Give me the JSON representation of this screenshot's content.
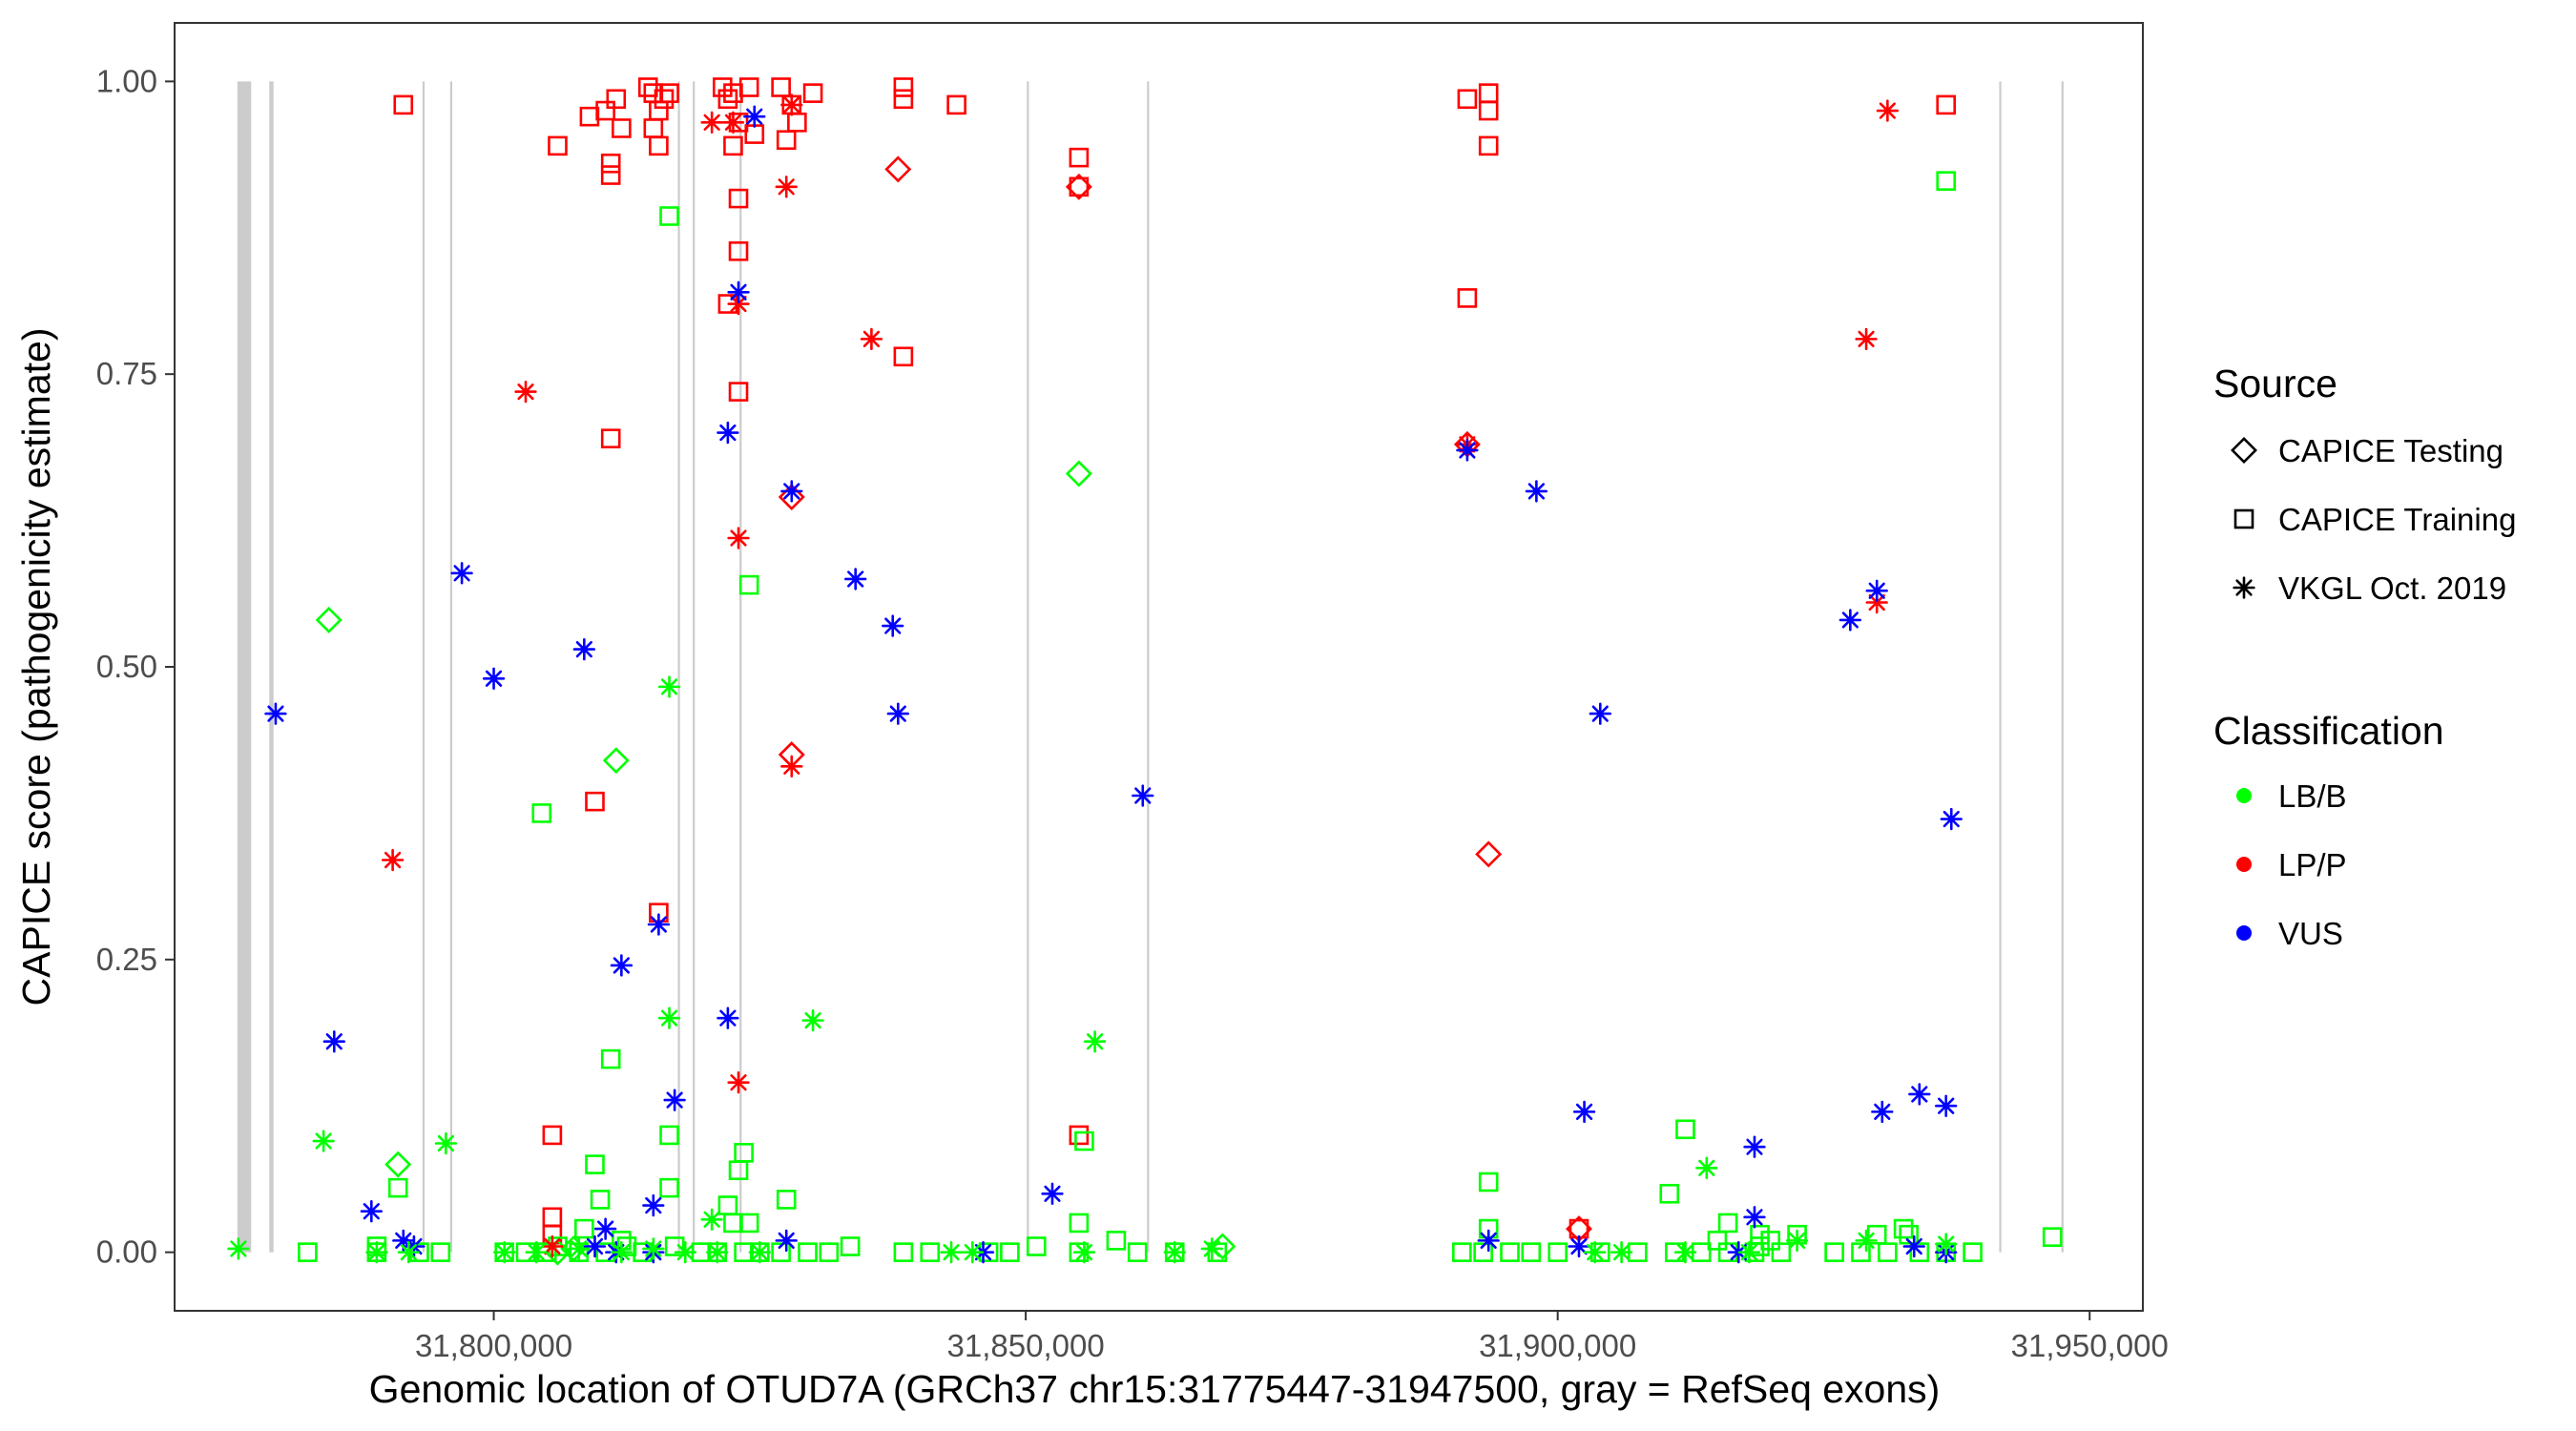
{
  "chart_data": {
    "type": "scatter",
    "xlabel": "Genomic location of OTUD7A (GRCh37 chr15:31775447-31947500, gray = RefSeq exons)",
    "ylabel": "CAPICE score (pathogenicity estimate)",
    "xlim": [
      31770000,
      31955000
    ],
    "ylim": [
      -0.05,
      1.05
    ],
    "x_ticks": [
      31800000,
      31850000,
      31900000,
      31950000
    ],
    "x_tick_labels": [
      "31,800,000",
      "31,850,000",
      "31,900,000",
      "31,950,000"
    ],
    "y_ticks": [
      0,
      0.25,
      0.5,
      0.75,
      1.0
    ],
    "y_tick_labels": [
      "0.00",
      "0.25",
      "0.50",
      "0.75",
      "1.00"
    ],
    "exons": [
      {
        "start": 31775900,
        "end": 31777200
      },
      {
        "start": 31778900,
        "end": 31779300
      },
      {
        "start": 31793300,
        "end": 31793450
      },
      {
        "start": 31795900,
        "end": 31796050
      },
      {
        "start": 31817300,
        "end": 31817450
      },
      {
        "start": 31818700,
        "end": 31818850
      },
      {
        "start": 31823100,
        "end": 31823250
      },
      {
        "start": 31850100,
        "end": 31850250
      },
      {
        "start": 31861400,
        "end": 31861550
      },
      {
        "start": 31941500,
        "end": 31941650
      },
      {
        "start": 31947350,
        "end": 31947500
      }
    ],
    "legend": {
      "source_title": "Source",
      "source_items": [
        {
          "label": "CAPICE Testing",
          "shape": "diamond"
        },
        {
          "label": "CAPICE Training",
          "shape": "square"
        },
        {
          "label": "VKGL Oct. 2019",
          "shape": "asterisk"
        }
      ],
      "class_title": "Classification",
      "class_items": [
        {
          "label": "LB/B",
          "color": "#00ff00"
        },
        {
          "label": "LP/P",
          "color": "#ff0000"
        },
        {
          "label": "VUS",
          "color": "#0000ff"
        }
      ]
    },
    "colors": {
      "LB/B": "#00ff00",
      "LP/P": "#ff0000",
      "VUS": "#0000ff"
    },
    "series": [
      {
        "name": "CAPICE Training / LP/P",
        "shape": "square",
        "classification": "LP/P",
        "points": [
          [
            31791500,
            0.98
          ],
          [
            31806000,
            0.945
          ],
          [
            31809000,
            0.97
          ],
          [
            31810500,
            0.975
          ],
          [
            31811000,
            0.93
          ],
          [
            31811000,
            0.92
          ],
          [
            31811500,
            0.985
          ],
          [
            31812000,
            0.96
          ],
          [
            31814500,
            0.995
          ],
          [
            31815000,
            0.99
          ],
          [
            31815500,
            0.975
          ],
          [
            31815000,
            0.96
          ],
          [
            31815500,
            0.945
          ],
          [
            31816000,
            0.985
          ],
          [
            31816500,
            0.99
          ],
          [
            31821500,
            0.995
          ],
          [
            31822000,
            0.985
          ],
          [
            31822500,
            0.99
          ],
          [
            31823000,
            0.965
          ],
          [
            31822500,
            0.945
          ],
          [
            31824000,
            0.995
          ],
          [
            31824500,
            0.955
          ],
          [
            31823000,
            0.9
          ],
          [
            31823000,
            0.855
          ],
          [
            31823000,
            0.735
          ],
          [
            31822000,
            0.81
          ],
          [
            31827000,
            0.995
          ],
          [
            31828000,
            0.98
          ],
          [
            31828500,
            0.965
          ],
          [
            31827500,
            0.95
          ],
          [
            31830000,
            0.99
          ],
          [
            31838500,
            0.995
          ],
          [
            31838500,
            0.985
          ],
          [
            31843500,
            0.98
          ],
          [
            31838500,
            0.765
          ],
          [
            31855000,
            0.935
          ],
          [
            31855000,
            0.91
          ],
          [
            31891500,
            0.985
          ],
          [
            31893500,
            0.99
          ],
          [
            31893500,
            0.975
          ],
          [
            31893500,
            0.945
          ],
          [
            31891500,
            0.815
          ],
          [
            31936500,
            0.98
          ],
          [
            31811000,
            0.695
          ],
          [
            31815500,
            0.29
          ],
          [
            31809500,
            0.385
          ],
          [
            31805500,
            0.1
          ],
          [
            31805500,
            0.03
          ],
          [
            31805500,
            0.015
          ],
          [
            31855000,
            0.1
          ],
          [
            31902000,
            0.02
          ]
        ]
      },
      {
        "name": "CAPICE Training / LB/B",
        "shape": "square",
        "classification": "LB/B",
        "points": [
          [
            31816500,
            0.885
          ],
          [
            31936500,
            0.915
          ],
          [
            31824000,
            0.57
          ],
          [
            31804500,
            0.375
          ],
          [
            31811000,
            0.165
          ],
          [
            31823500,
            0.085
          ],
          [
            31816500,
            0.1
          ],
          [
            31809500,
            0.075
          ],
          [
            31791000,
            0.055
          ],
          [
            31816500,
            0.055
          ],
          [
            31823000,
            0.07
          ],
          [
            31827500,
            0.045
          ],
          [
            31810000,
            0.045
          ],
          [
            31822000,
            0.04
          ],
          [
            31822500,
            0.025
          ],
          [
            31824000,
            0.025
          ],
          [
            31855000,
            0.025
          ],
          [
            31855500,
            0.095
          ],
          [
            31893500,
            0.06
          ],
          [
            31893500,
            0.02
          ],
          [
            31912000,
            0.105
          ],
          [
            31910500,
            0.05
          ],
          [
            31916000,
            0.025
          ],
          [
            31919000,
            0.015
          ],
          [
            31922500,
            0.015
          ],
          [
            31930000,
            0.015
          ],
          [
            31933000,
            0.015
          ],
          [
            31920000,
            0.01
          ],
          [
            31782500,
            0.0
          ],
          [
            31789000,
            0.0
          ],
          [
            31789000,
            0.005
          ],
          [
            31793000,
            0.0
          ],
          [
            31795000,
            0.0
          ],
          [
            31801000,
            0.0
          ],
          [
            31803000,
            0.0
          ],
          [
            31805000,
            0.0
          ],
          [
            31806000,
            0.005
          ],
          [
            31808000,
            0.0
          ],
          [
            31810500,
            0.0
          ],
          [
            31812500,
            0.005
          ],
          [
            31814000,
            0.0
          ],
          [
            31817000,
            0.005
          ],
          [
            31819500,
            0.0
          ],
          [
            31821000,
            0.0
          ],
          [
            31823500,
            0.0
          ],
          [
            31825000,
            0.0
          ],
          [
            31827000,
            0.0
          ],
          [
            31829500,
            0.0
          ],
          [
            31831500,
            0.0
          ],
          [
            31833500,
            0.005
          ],
          [
            31838500,
            0.0
          ],
          [
            31841000,
            0.0
          ],
          [
            31846500,
            0.0
          ],
          [
            31848500,
            0.0
          ],
          [
            31851000,
            0.005
          ],
          [
            31855000,
            0.0
          ],
          [
            31858500,
            0.01
          ],
          [
            31860500,
            0.0
          ],
          [
            31864000,
            0.0
          ],
          [
            31868000,
            0.0
          ],
          [
            31891000,
            0.0
          ],
          [
            31893000,
            0.0
          ],
          [
            31895500,
            0.0
          ],
          [
            31897500,
            0.0
          ],
          [
            31900000,
            0.0
          ],
          [
            31904000,
            0.0
          ],
          [
            31907500,
            0.0
          ],
          [
            31911000,
            0.0
          ],
          [
            31913500,
            0.0
          ],
          [
            31916000,
            0.0
          ],
          [
            31918500,
            0.0
          ],
          [
            31921000,
            0.0
          ],
          [
            31926000,
            0.0
          ],
          [
            31928500,
            0.0
          ],
          [
            31931000,
            0.0
          ],
          [
            31934000,
            0.0
          ],
          [
            31936500,
            0.0
          ],
          [
            31939000,
            0.0
          ],
          [
            31946500,
            0.013
          ],
          [
            31932500,
            0.02
          ],
          [
            31915000,
            0.01
          ],
          [
            31919000,
            0.005
          ],
          [
            31808500,
            0.02
          ],
          [
            31812000,
            0.01
          ]
        ]
      },
      {
        "name": "CAPICE Testing / LP/P",
        "shape": "diamond",
        "classification": "LP/P",
        "points": [
          [
            31838000,
            0.925
          ],
          [
            31855000,
            0.91
          ],
          [
            31828000,
            0.645
          ],
          [
            31828000,
            0.425
          ],
          [
            31893500,
            0.34
          ],
          [
            31891500,
            0.69
          ],
          [
            31902000,
            0.02
          ]
        ]
      },
      {
        "name": "CAPICE Testing / LB/B",
        "shape": "diamond",
        "classification": "LB/B",
        "points": [
          [
            31784500,
            0.54
          ],
          [
            31811500,
            0.42
          ],
          [
            31855000,
            0.665
          ],
          [
            31791000,
            0.075
          ],
          [
            31806000,
            0.0
          ],
          [
            31868500,
            0.005
          ],
          [
            31807500,
            0.003
          ]
        ]
      },
      {
        "name": "VKGL Oct. 2019 / LP/P",
        "shape": "asterisk",
        "classification": "LP/P",
        "points": [
          [
            31790500,
            0.335
          ],
          [
            31803000,
            0.735
          ],
          [
            31820500,
            0.965
          ],
          [
            31822500,
            0.965
          ],
          [
            31823000,
            0.81
          ],
          [
            31823000,
            0.61
          ],
          [
            31823000,
            0.145
          ],
          [
            31827500,
            0.91
          ],
          [
            31828000,
            0.98
          ],
          [
            31828000,
            0.415
          ],
          [
            31835500,
            0.78
          ],
          [
            31891500,
            0.69
          ],
          [
            31929000,
            0.78
          ],
          [
            31930000,
            0.555
          ],
          [
            31931000,
            0.975
          ],
          [
            31805500,
            0.005
          ]
        ]
      },
      {
        "name": "VKGL Oct. 2019 / VUS",
        "shape": "asterisk",
        "classification": "VUS",
        "points": [
          [
            31779500,
            0.46
          ],
          [
            31797000,
            0.58
          ],
          [
            31800000,
            0.49
          ],
          [
            31808500,
            0.515
          ],
          [
            31785000,
            0.18
          ],
          [
            31788500,
            0.035
          ],
          [
            31791500,
            0.01
          ],
          [
            31792500,
            0.005
          ],
          [
            31812000,
            0.245
          ],
          [
            31815500,
            0.28
          ],
          [
            31817000,
            0.13
          ],
          [
            31822000,
            0.2
          ],
          [
            31822000,
            0.7
          ],
          [
            31823000,
            0.82
          ],
          [
            31824500,
            0.97
          ],
          [
            31828000,
            0.65
          ],
          [
            31834000,
            0.575
          ],
          [
            31837500,
            0.535
          ],
          [
            31838000,
            0.46
          ],
          [
            31861000,
            0.39
          ],
          [
            31852500,
            0.05
          ],
          [
            31846000,
            0.0
          ],
          [
            31827500,
            0.01
          ],
          [
            31815000,
            0.04
          ],
          [
            31810500,
            0.02
          ],
          [
            31809500,
            0.005
          ],
          [
            31811500,
            0.0
          ],
          [
            31815000,
            0.0
          ],
          [
            31891500,
            0.685
          ],
          [
            31898000,
            0.65
          ],
          [
            31904000,
            0.46
          ],
          [
            31902500,
            0.12
          ],
          [
            31893500,
            0.01
          ],
          [
            31902000,
            0.005
          ],
          [
            31917000,
            0.0
          ],
          [
            31918500,
            0.09
          ],
          [
            31918500,
            0.03
          ],
          [
            31927500,
            0.54
          ],
          [
            31930000,
            0.565
          ],
          [
            31937000,
            0.37
          ],
          [
            31930500,
            0.12
          ],
          [
            31934000,
            0.135
          ],
          [
            31936500,
            0.125
          ],
          [
            31933500,
            0.005
          ],
          [
            31936500,
            0.0
          ]
        ]
      },
      {
        "name": "VKGL Oct. 2019 / LB/B",
        "shape": "asterisk",
        "classification": "LB/B",
        "points": [
          [
            31776000,
            0.003
          ],
          [
            31784000,
            0.095
          ],
          [
            31795500,
            0.093
          ],
          [
            31816500,
            0.483
          ],
          [
            31816500,
            0.2
          ],
          [
            31830000,
            0.198
          ],
          [
            31856500,
            0.18
          ],
          [
            31820500,
            0.028
          ],
          [
            31801000,
            0.0
          ],
          [
            31804000,
            0.0
          ],
          [
            31808000,
            0.003
          ],
          [
            31812000,
            0.0
          ],
          [
            31815000,
            0.003
          ],
          [
            31818000,
            0.0
          ],
          [
            31821000,
            0.0
          ],
          [
            31825000,
            0.0
          ],
          [
            31843000,
            0.0
          ],
          [
            31845000,
            0.0
          ],
          [
            31855500,
            0.0
          ],
          [
            31864000,
            0.0
          ],
          [
            31867500,
            0.003
          ],
          [
            31789000,
            0.0
          ],
          [
            31792000,
            0.0
          ],
          [
            31914000,
            0.072
          ],
          [
            31912000,
            0.0
          ],
          [
            31918000,
            0.0
          ],
          [
            31922500,
            0.01
          ],
          [
            31929000,
            0.01
          ],
          [
            31936500,
            0.007
          ],
          [
            31906000,
            0.0
          ],
          [
            31903500,
            0.0
          ]
        ]
      }
    ]
  }
}
